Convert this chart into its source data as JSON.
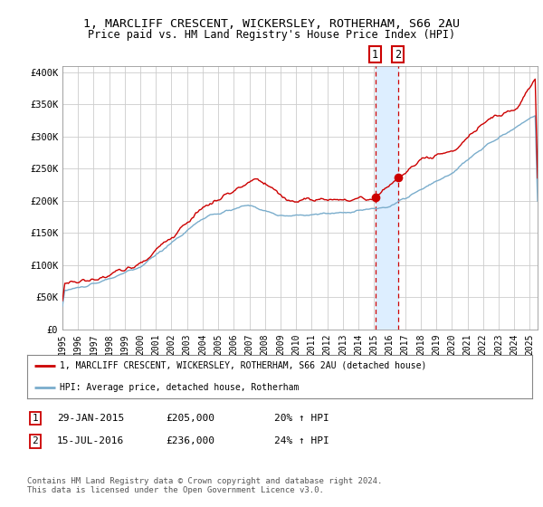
{
  "title": "1, MARCLIFF CRESCENT, WICKERSLEY, ROTHERHAM, S66 2AU",
  "subtitle": "Price paid vs. HM Land Registry's House Price Index (HPI)",
  "ylim": [
    0,
    410000
  ],
  "xlim_start": 1995.0,
  "xlim_end": 2025.5,
  "yticks": [
    0,
    50000,
    100000,
    150000,
    200000,
    250000,
    300000,
    350000,
    400000
  ],
  "ytick_labels": [
    "£0",
    "£50K",
    "£100K",
    "£150K",
    "£200K",
    "£250K",
    "£300K",
    "£350K",
    "£400K"
  ],
  "xtick_years": [
    1995,
    1996,
    1997,
    1998,
    1999,
    2000,
    2001,
    2002,
    2003,
    2004,
    2005,
    2006,
    2007,
    2008,
    2009,
    2010,
    2011,
    2012,
    2013,
    2014,
    2015,
    2016,
    2017,
    2018,
    2019,
    2020,
    2021,
    2022,
    2023,
    2024,
    2025
  ],
  "property_color": "#cc0000",
  "hpi_color": "#7aadcc",
  "transaction1_date": 2015.08,
  "transaction1_price": 205000,
  "transaction1_label": "1",
  "transaction2_date": 2016.54,
  "transaction2_price": 236000,
  "transaction2_label": "2",
  "vspan_color": "#ddeeff",
  "footnote": "Contains HM Land Registry data © Crown copyright and database right 2024.\nThis data is licensed under the Open Government Licence v3.0.",
  "legend_line1": "1, MARCLIFF CRESCENT, WICKERSLEY, ROTHERHAM, S66 2AU (detached house)",
  "legend_line2": "HPI: Average price, detached house, Rotherham",
  "table_row1": [
    "1",
    "29-JAN-2015",
    "£205,000",
    "20% ↑ HPI"
  ],
  "table_row2": [
    "2",
    "15-JUL-2016",
    "£236,000",
    "24% ↑ HPI"
  ],
  "background_color": "#ffffff",
  "grid_color": "#cccccc"
}
